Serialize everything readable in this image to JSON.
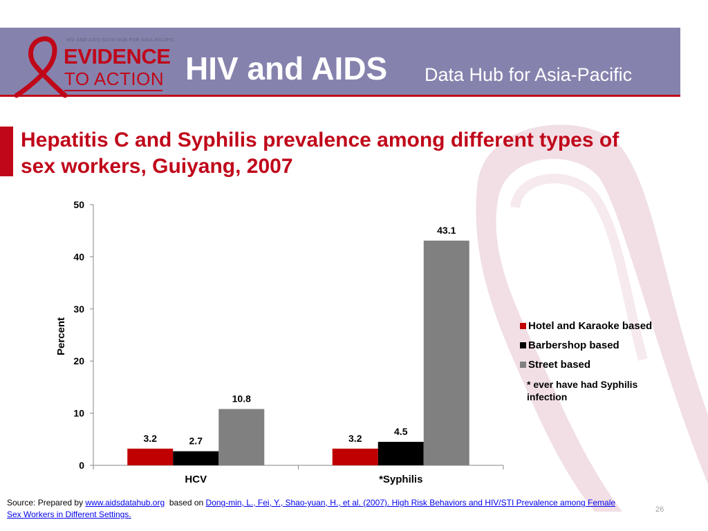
{
  "header": {
    "logo": {
      "tagline": "HIV AND AIDS DATA HUB FOR ASIA-PACIFIC",
      "word1": "EVIDENCE",
      "word2": "TO ACTION"
    },
    "title": "HIV and AIDS",
    "subtitle": "Data Hub for Asia-Pacific"
  },
  "slide": {
    "title": "Hepatitis C and Syphilis prevalence among different types of sex workers, Guiyang, 2007",
    "page_number": "26"
  },
  "colors": {
    "header_bg": "#8583ad",
    "accent_red": "#c0071a",
    "series_hotel": "#c00000",
    "series_barber": "#000000",
    "series_street": "#808080"
  },
  "chart_data": {
    "type": "bar",
    "categories": [
      "HCV",
      "*Syphilis"
    ],
    "series": [
      {
        "name": "Hotel and Karaoke based",
        "values": [
          3.2,
          3.2
        ]
      },
      {
        "name": "Barbershop based",
        "values": [
          2.7,
          4.5
        ]
      },
      {
        "name": "Street based",
        "values": [
          10.8,
          43.1
        ]
      }
    ],
    "ylabel": "Percent",
    "xlabel": "",
    "ylim": [
      0,
      50
    ],
    "yticks": [
      0,
      10,
      20,
      30,
      40,
      50
    ],
    "grid": false,
    "legend_position": "right",
    "legend_note": "*   ever have had Syphilis infection"
  },
  "footer": {
    "source_prefix": "Source: Prepared by ",
    "source_link1": "www.aidsdatahub.org",
    "source_mid": "  based on ",
    "source_link2": "Dong-min, L., Fei, Y., Shao-yuan, H., et al. (2007). High Risk Behaviors and HIV/STI Prevalence among Female Sex Workers in Different Settings."
  }
}
